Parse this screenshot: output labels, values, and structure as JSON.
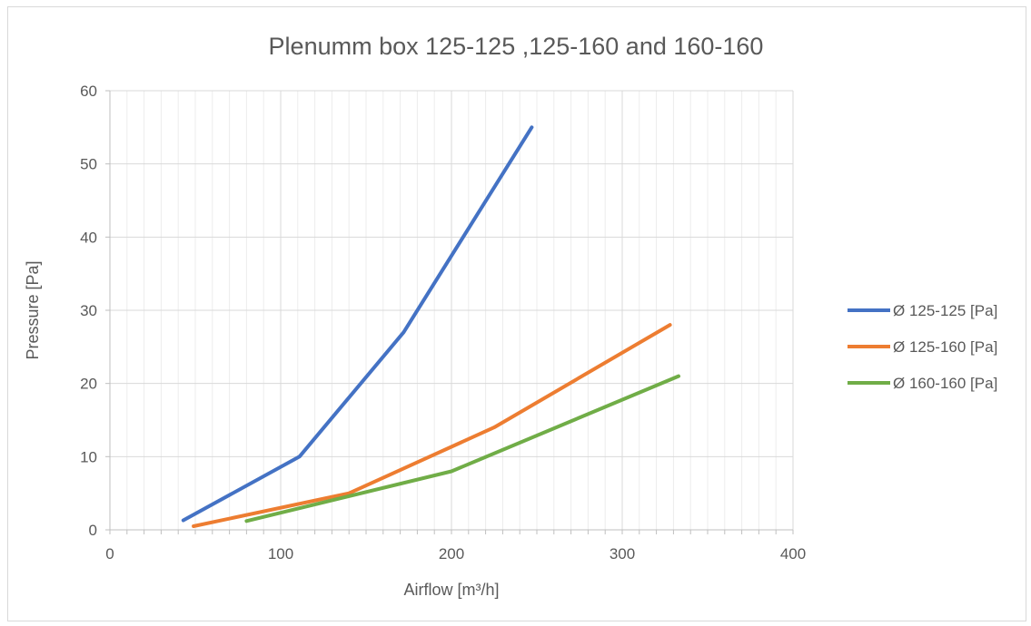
{
  "chart_data": {
    "type": "line",
    "title": "Plenumm box 125-125 ,125-160 and 160-160",
    "xlabel": "Airflow [m³/h]",
    "ylabel": "Pressure [Pa]",
    "xlim": [
      0,
      400
    ],
    "ylim": [
      0,
      60
    ],
    "xticks": [
      0,
      100,
      200,
      300,
      400
    ],
    "yticks": [
      0,
      10,
      20,
      30,
      40,
      50,
      60
    ],
    "grid": true,
    "legend_position": "right",
    "series": [
      {
        "name": "Ø 125-125 [Pa]",
        "color": "#4472c4",
        "points": [
          [
            43,
            1.3
          ],
          [
            111,
            10
          ],
          [
            172,
            27
          ],
          [
            247,
            55
          ]
        ]
      },
      {
        "name": "Ø 125-160 [Pa]",
        "color": "#ed7d31",
        "points": [
          [
            49,
            0.5
          ],
          [
            140,
            5
          ],
          [
            225,
            14
          ],
          [
            328,
            28
          ]
        ]
      },
      {
        "name": "Ø 160-160 [Pa]",
        "color": "#70ad47",
        "points": [
          [
            80,
            1.2
          ],
          [
            200,
            8
          ],
          [
            333,
            21
          ]
        ]
      }
    ]
  }
}
